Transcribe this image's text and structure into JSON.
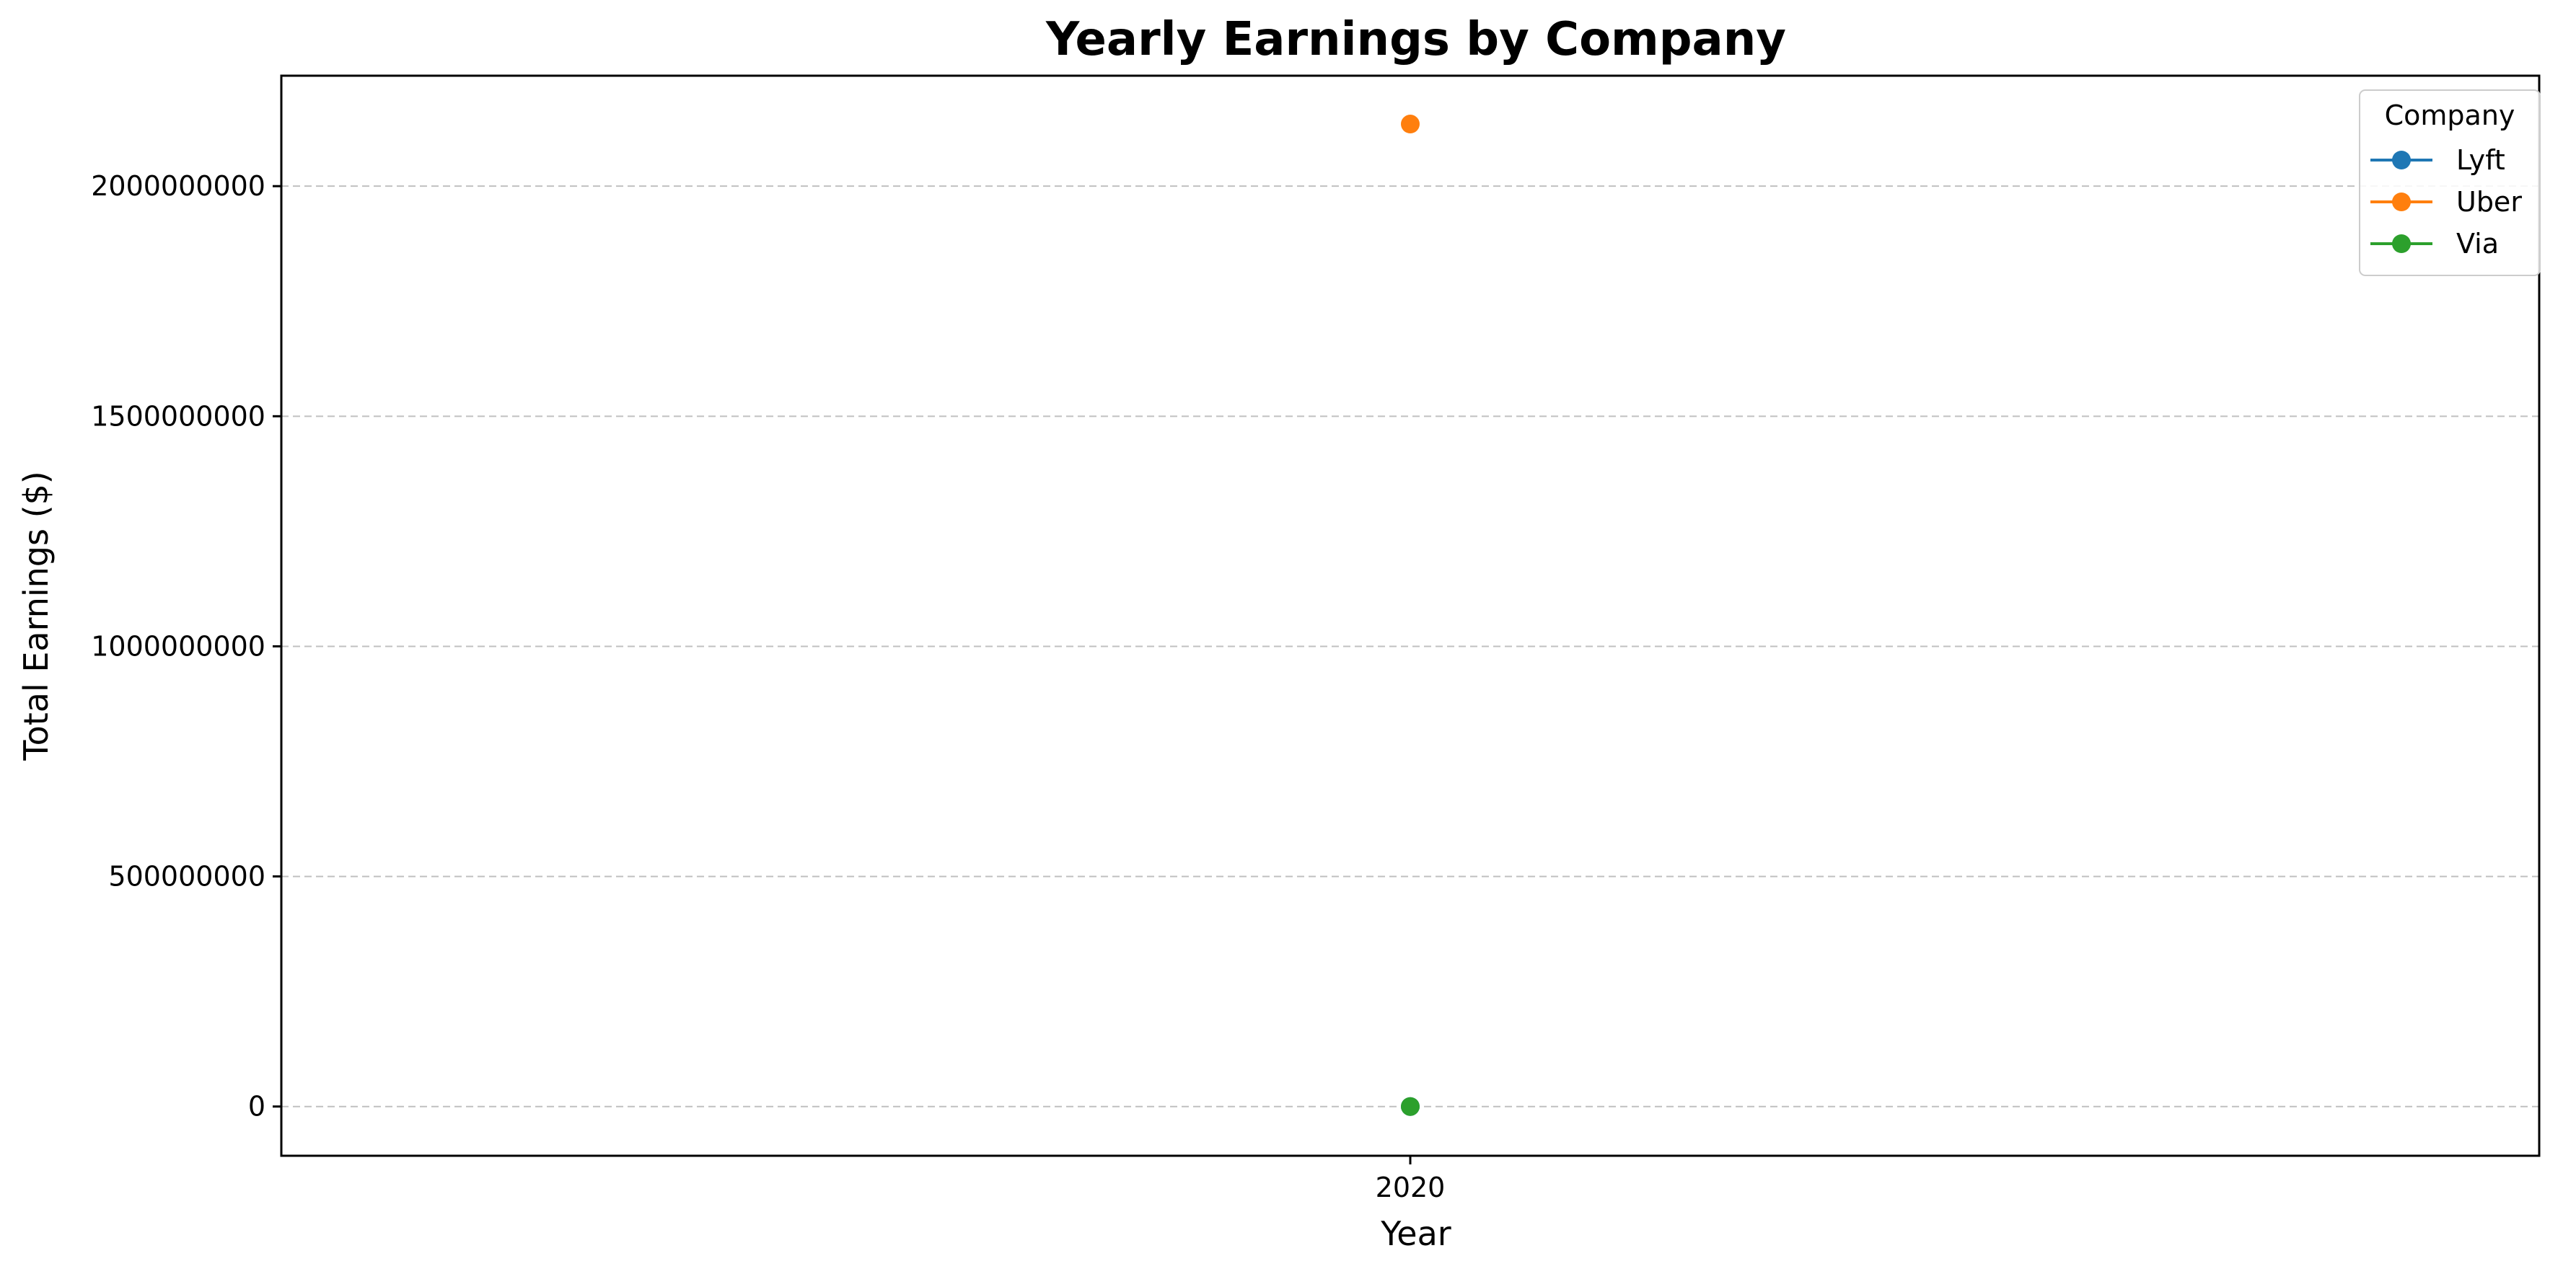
{
  "chart_data": {
    "type": "line",
    "title": "Yearly Earnings by Company",
    "xlabel": "Year",
    "ylabel": "Total Earnings ($)",
    "x": [
      "2020"
    ],
    "xlim": [
      2019.955,
      2020.045
    ],
    "ylim": [
      -107000000,
      2240000000
    ],
    "yticks": [
      0,
      500000000,
      1000000000,
      1500000000,
      2000000000
    ],
    "ytick_labels": [
      "0",
      "500000000",
      "1000000000",
      "1500000000",
      "2000000000"
    ],
    "grid": {
      "y": true,
      "x": false,
      "style": "dashed"
    },
    "legend": {
      "title": "Company",
      "placement": "top-right"
    },
    "series": [
      {
        "name": "Lyft",
        "color": "#1f77b4",
        "values": [
          0
        ]
      },
      {
        "name": "Uber",
        "color": "#ff7f0e",
        "values": [
          2135000000
        ]
      },
      {
        "name": "Via",
        "color": "#2ca02c",
        "values": [
          0
        ]
      }
    ]
  }
}
